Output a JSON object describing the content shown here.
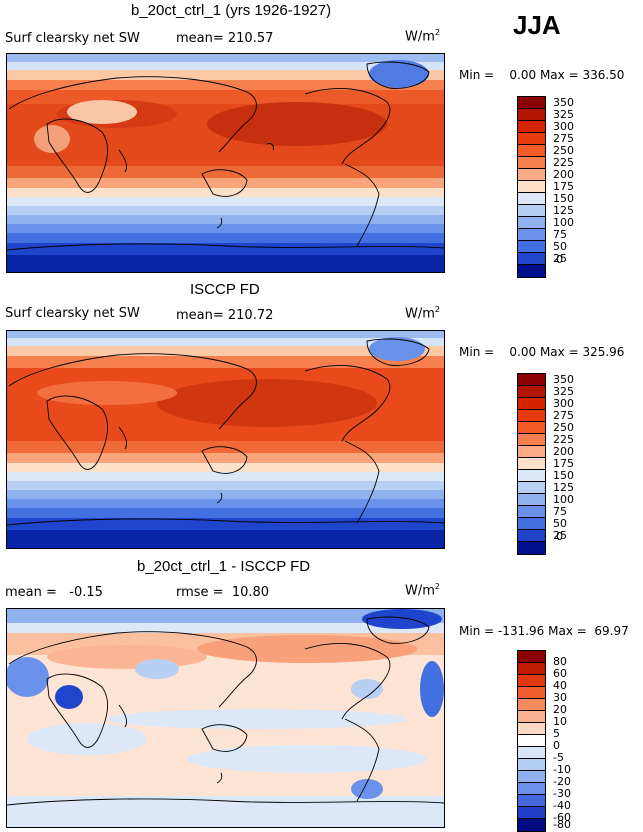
{
  "season": "JJA",
  "unit_main": "W/m",
  "unit_exp": "2",
  "panels": [
    {
      "title": "b_20ct_ctrl_1 (yrs 1926-1927)",
      "left_label": "Surf clearsky net SW",
      "stat1": "mean= 210.57",
      "stat2": "",
      "minmax": "Min =    0.00 Max = 336.50",
      "colorbar": {
        "labels": [
          "350",
          "325",
          "300",
          "275",
          "250",
          "225",
          "200",
          "175",
          "150",
          "125",
          "100",
          "75",
          "50",
          "25",
          "0"
        ],
        "colors": [
          "#8b0000",
          "#b31600",
          "#d42400",
          "#e83c10",
          "#f25a28",
          "#f77f4e",
          "#fbac86",
          "#fde0c9",
          "#dce8f7",
          "#b7cff3",
          "#8fb2ef",
          "#6b92ea",
          "#4370e0",
          "#1f45cc",
          "#00108c"
        ]
      }
    },
    {
      "title": "ISCCP FD",
      "left_label": "Surf clearsky net SW",
      "stat1": "mean= 210.72",
      "stat2": "",
      "minmax": "Min =    0.00 Max = 325.96",
      "colorbar": {
        "labels": [
          "350",
          "325",
          "300",
          "275",
          "250",
          "225",
          "200",
          "175",
          "150",
          "125",
          "100",
          "75",
          "50",
          "25",
          "0"
        ],
        "colors": [
          "#8b0000",
          "#b31600",
          "#d42400",
          "#e83c10",
          "#f25a28",
          "#f77f4e",
          "#fbac86",
          "#fde0c9",
          "#dce8f7",
          "#b7cff3",
          "#8fb2ef",
          "#6b92ea",
          "#4370e0",
          "#1f45cc",
          "#00108c"
        ]
      }
    },
    {
      "title": "b_20ct_ctrl_1 - ISCCP FD",
      "left_label": "mean =   -0.15",
      "stat1": "rmse =  10.80",
      "stat2": "",
      "minmax": "Min = -131.96 Max =  69.97",
      "colorbar": {
        "labels": [
          "80",
          "60",
          "40",
          "30",
          "20",
          "10",
          "5",
          "0",
          "-5",
          "-10",
          "-20",
          "-30",
          "-40",
          "-60",
          "-80"
        ],
        "colors": [
          "#8b0000",
          "#c01a00",
          "#e03a10",
          "#f05e30",
          "#f88a60",
          "#fbb392",
          "#fdd8c4",
          "#ffffff",
          "#d8e6f8",
          "#b4cdf3",
          "#8eb0ee",
          "#6a90e8",
          "#4369dd",
          "#1f3fc8",
          "#000c80"
        ]
      }
    }
  ]
}
